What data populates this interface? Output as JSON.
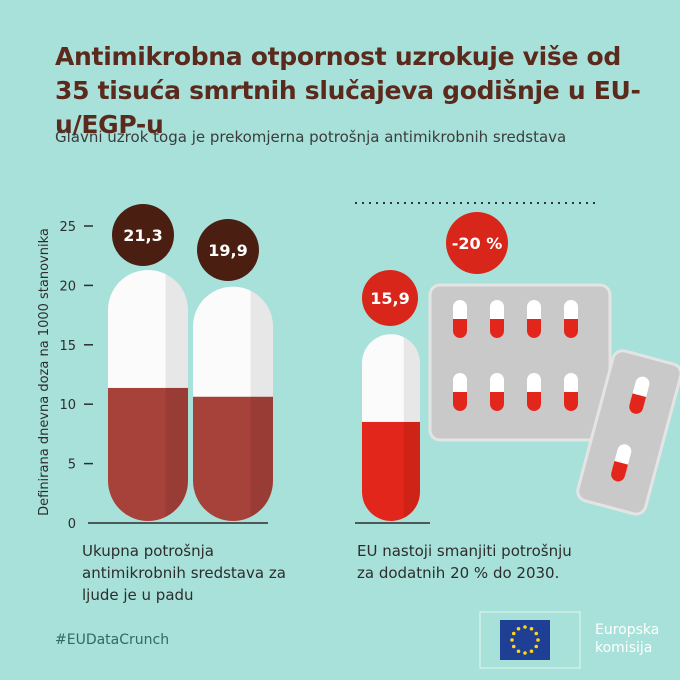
{
  "title": "Antimikrobna otpornost uzrokuje više od 35 tisuća smrtnih slučajeva godišnje u EU-u/EGP-u",
  "subtitle": "Glavni uzrok toga je prekomjerna potrošnja antimikrobnih sredstava",
  "chart_data": {
    "type": "bar",
    "y_label": "Definirana dnevna doza na 1000 stanovnika",
    "ylim": [
      0,
      25
    ],
    "yticks": [
      0,
      5,
      10,
      15,
      20,
      25
    ],
    "values": [
      21.3,
      19.9,
      15.9
    ],
    "value_labels": [
      "21,3",
      "19,9",
      "15,9"
    ],
    "colors": [
      "#a6423a",
      "#a6423a",
      "#e2261b"
    ],
    "label_colors": [
      "#4a1f12",
      "#4a1f12",
      "#d8261b"
    ],
    "annotation": "-20 %",
    "captions": [
      "Ukupna potrošnja antimikrobnih sredstava za ljude je u padu",
      "EU nastoji smanjiti potrošnju za dodatnih 20 % do 2030."
    ]
  },
  "footer": {
    "hashtag": "#EUDataCrunch",
    "logo_text": [
      "Europska",
      "komisija"
    ]
  }
}
